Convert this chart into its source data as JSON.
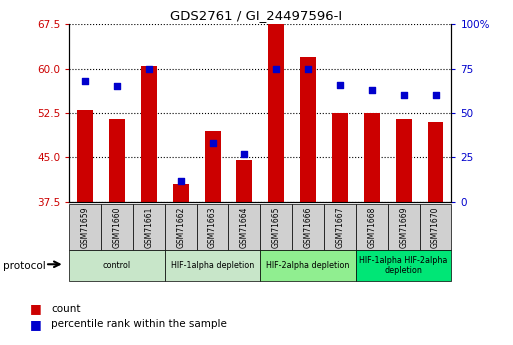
{
  "title": "GDS2761 / GI_24497596-I",
  "samples": [
    "GSM71659",
    "GSM71660",
    "GSM71661",
    "GSM71662",
    "GSM71663",
    "GSM71664",
    "GSM71665",
    "GSM71666",
    "GSM71667",
    "GSM71668",
    "GSM71669",
    "GSM71670"
  ],
  "count_values": [
    53.0,
    51.5,
    60.5,
    40.5,
    49.5,
    44.5,
    68.0,
    62.0,
    52.5,
    52.5,
    51.5,
    51.0
  ],
  "percentile_values": [
    68,
    65,
    75,
    12,
    33,
    27,
    75,
    75,
    66,
    63,
    60,
    60
  ],
  "ylim_left": [
    37.5,
    67.5
  ],
  "ylim_right": [
    0,
    100
  ],
  "yticks_left": [
    37.5,
    45.0,
    52.5,
    60.0,
    67.5
  ],
  "yticks_right": [
    0,
    25,
    50,
    75,
    100
  ],
  "ytick_labels_right": [
    "0",
    "25",
    "50",
    "75",
    "100%"
  ],
  "bar_color": "#cc0000",
  "dot_color": "#0000cc",
  "protocol_groups": [
    {
      "label": "control",
      "start": 0,
      "end": 2,
      "color": "#c8e6c9"
    },
    {
      "label": "HIF-1alpha depletion",
      "start": 3,
      "end": 5,
      "color": "#c8e6c9"
    },
    {
      "label": "HIF-2alpha depletion",
      "start": 6,
      "end": 8,
      "color": "#90ee90"
    },
    {
      "label": "HIF-1alpha HIF-2alpha\ndepletion",
      "start": 9,
      "end": 11,
      "color": "#00e676"
    }
  ],
  "legend_count_label": "count",
  "legend_percentile_label": "percentile rank within the sample",
  "label_color_left": "#cc0000",
  "label_color_right": "#0000cc",
  "background_color": "#ffffff",
  "protocol_label": "protocol",
  "bar_bottom": 37.5,
  "sample_box_color": "#d0d0d0",
  "bar_width": 0.5
}
